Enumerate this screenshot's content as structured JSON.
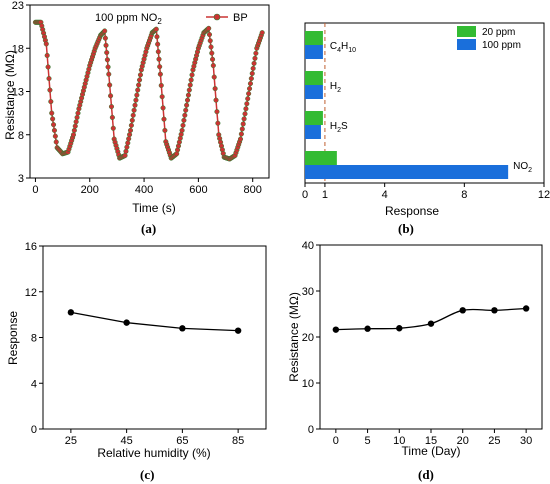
{
  "figure": {
    "panel_labels": [
      "(a)",
      "(b)",
      "(c)",
      "(d)"
    ]
  },
  "chart_data": [
    {
      "type": "line",
      "panel": "(a)",
      "annotation": "100 ppm NO2",
      "xlabel": "Time (s)",
      "ylabel": "Resistance (MΩ)",
      "xlim": [
        -20,
        860
      ],
      "ylim": [
        3,
        23
      ],
      "x_ticks": [
        "0",
        "200",
        "400",
        "600",
        "800"
      ],
      "y_ticks": [
        "3",
        "8",
        "13",
        "18",
        "23"
      ],
      "legend": {
        "label": "BP",
        "position": "top-right"
      },
      "series_color": "#cc3333",
      "marker_edge": "#2e7d32",
      "series": [
        {
          "name": "BP",
          "x": [
            0,
            20,
            40,
            60,
            80,
            100,
            120,
            140,
            160,
            180,
            200,
            220,
            240,
            255,
            270,
            290,
            310,
            330,
            350,
            370,
            390,
            410,
            430,
            445,
            460,
            480,
            500,
            520,
            540,
            560,
            580,
            600,
            620,
            638,
            655,
            675,
            695,
            715,
            735,
            755,
            775,
            795,
            815,
            835
          ],
          "y": [
            21,
            21,
            18.5,
            10.5,
            6.5,
            5.8,
            6,
            8,
            11,
            13.5,
            16,
            18,
            19.5,
            20,
            15,
            7.5,
            5.3,
            5.6,
            8.5,
            12,
            15.5,
            18,
            19.8,
            20.2,
            15,
            7.2,
            5.3,
            5.8,
            8.5,
            12,
            15.5,
            18,
            19.8,
            20.3,
            16,
            8,
            5.4,
            5.2,
            5.6,
            7.5,
            11,
            14.5,
            18,
            19.8
          ]
        }
      ]
    },
    {
      "type": "bar",
      "orientation": "horizontal",
      "panel": "(b)",
      "xlabel": "Response",
      "xlim": [
        0,
        12
      ],
      "x_ticks": [
        "0",
        "1",
        "4",
        "8",
        "12"
      ],
      "reference_line": 1,
      "categories": [
        "C4H10",
        "H2",
        "H2S",
        "NO2"
      ],
      "category_labels": [
        {
          "base": "C",
          "sub1": "4",
          "mid": "H",
          "sub2": "10"
        },
        {
          "base": "H",
          "sub1": "2",
          "mid": "",
          "sub2": ""
        },
        {
          "base": "H",
          "sub1": "2",
          "mid": "S",
          "sub2": ""
        },
        {
          "base": "NO",
          "sub1": "2",
          "mid": "",
          "sub2": ""
        }
      ],
      "series": [
        {
          "name": "20 ppm",
          "color": "#33bb33",
          "values": [
            0.9,
            0.9,
            0.9,
            1.6
          ]
        },
        {
          "name": "100 ppm",
          "color": "#1a6fdb",
          "values": [
            0.9,
            0.9,
            0.8,
            10.2
          ]
        }
      ],
      "legend_position": "top-right"
    },
    {
      "type": "line",
      "panel": "(c)",
      "xlabel": "Relative humidity (%)",
      "ylabel": "Response",
      "xlim": [
        15,
        95
      ],
      "ylim": [
        0,
        16
      ],
      "x_ticks": [
        "25",
        "45",
        "65",
        "85"
      ],
      "y_ticks": [
        "0",
        "4",
        "8",
        "12",
        "16"
      ],
      "series": [
        {
          "x": [
            25,
            45,
            65,
            85
          ],
          "y": [
            10.2,
            9.3,
            8.8,
            8.6
          ]
        }
      ]
    },
    {
      "type": "line",
      "panel": "(d)",
      "xlabel": "Time (Day)",
      "ylabel": "Resistance (MΩ)",
      "xlim": [
        -2.5,
        32.5
      ],
      "ylim": [
        0,
        40
      ],
      "x_ticks": [
        "0",
        "5",
        "10",
        "15",
        "20",
        "25",
        "30"
      ],
      "y_ticks": [
        "0",
        "10",
        "20",
        "30",
        "40"
      ],
      "series": [
        {
          "x": [
            0,
            5,
            10,
            15,
            20,
            25,
            30
          ],
          "y": [
            21.6,
            21.8,
            21.9,
            22.9,
            25.8,
            25.8,
            26.2
          ]
        }
      ]
    }
  ]
}
